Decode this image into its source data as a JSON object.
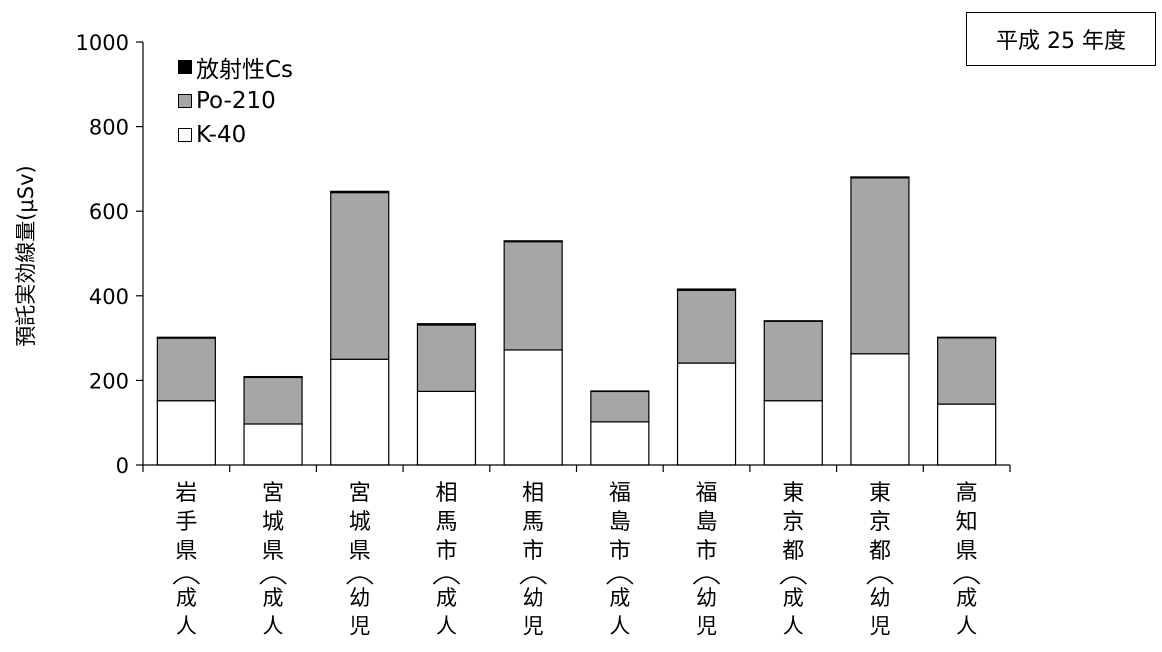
{
  "year_label": "平成 25 年度",
  "chart_data": {
    "type": "bar",
    "stacked": true,
    "ylabel": "預託実効線量(μSv)",
    "ylim": [
      0,
      1000
    ],
    "yticks": [
      0,
      200,
      400,
      600,
      800,
      1000
    ],
    "categories": [
      {
        "name": "岩手県",
        "group": "成人"
      },
      {
        "name": "宮城県",
        "group": "成人"
      },
      {
        "name": "宮城県",
        "group": "幼児"
      },
      {
        "name": "相馬市",
        "group": "成人"
      },
      {
        "name": "相馬市",
        "group": "幼児"
      },
      {
        "name": "福島市",
        "group": "成人"
      },
      {
        "name": "福島市",
        "group": "幼児"
      },
      {
        "name": "東京都",
        "group": "成人"
      },
      {
        "name": "東京都",
        "group": "幼児"
      },
      {
        "name": "高知県",
        "group": "成人"
      }
    ],
    "series": [
      {
        "name": "K-40",
        "color": "#ffffff",
        "values": [
          152,
          97,
          250,
          174,
          272,
          102,
          241,
          152,
          263,
          144
        ]
      },
      {
        "name": "Po-210",
        "color": "#a6a6a6",
        "values": [
          148,
          110,
          394,
          157,
          256,
          72,
          172,
          188,
          416,
          157
        ]
      },
      {
        "name": "放射性Cs",
        "color": "#000000",
        "values": [
          2,
          2,
          3,
          3,
          2,
          1,
          3,
          1,
          2,
          1
        ]
      }
    ],
    "legend": [
      "放射性Cs",
      "Po-210",
      "K-40"
    ],
    "legend_position": "top-left"
  }
}
